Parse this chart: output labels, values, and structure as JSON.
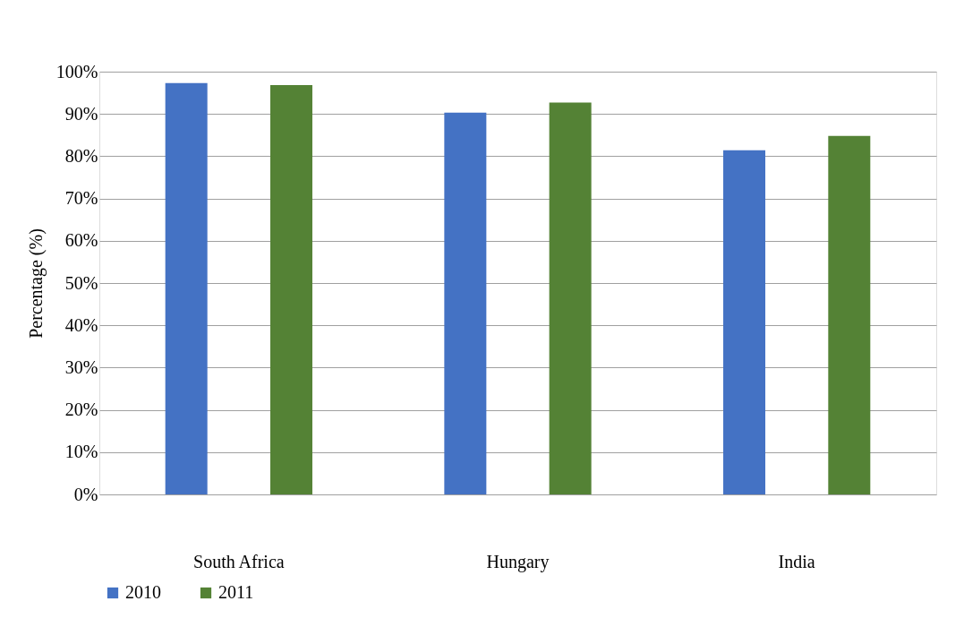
{
  "chart_data": {
    "type": "bar",
    "ylabel": "Percentage (%)",
    "categories": [
      "South Africa",
      "Hungary",
      "India"
    ],
    "series": [
      {
        "name": "2010",
        "color": "#4472c4",
        "values": [
          97.3,
          90.3,
          81.4
        ]
      },
      {
        "name": "2011",
        "color": "#548235",
        "values": [
          96.8,
          92.7,
          84.8
        ]
      }
    ],
    "ylim": [
      0,
      100
    ],
    "yticks": [
      {
        "value": 0,
        "label": "0%"
      },
      {
        "value": 10,
        "label": "10%"
      },
      {
        "value": 20,
        "label": "20%"
      },
      {
        "value": 30,
        "label": "30%"
      },
      {
        "value": 40,
        "label": "40%"
      },
      {
        "value": 50,
        "label": "50%"
      },
      {
        "value": 60,
        "label": "60%"
      },
      {
        "value": 70,
        "label": "70%"
      },
      {
        "value": 80,
        "label": "80%"
      },
      {
        "value": 90,
        "label": "90%"
      },
      {
        "value": 100,
        "label": "100%"
      }
    ],
    "grid": "y",
    "legend": "bottom"
  }
}
